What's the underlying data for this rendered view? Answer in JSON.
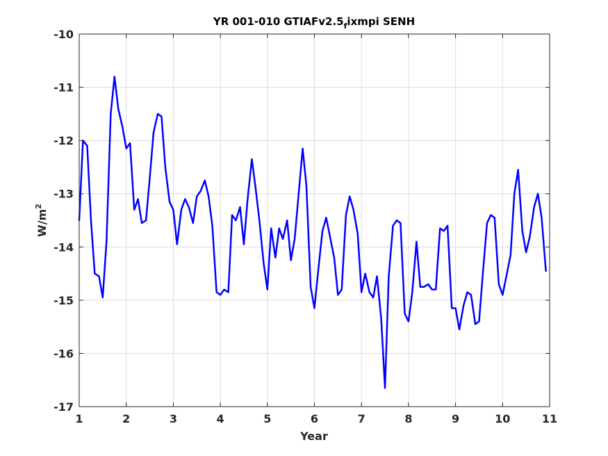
{
  "chart_data": {
    "type": "line",
    "title_main": "YR 001-010 GTIAFv2.5",
    "title_sub": "f",
    "title_end": "ixmpi SENH",
    "xlabel": "Year",
    "ylabel_base": "W/m",
    "ylabel_sup": "2",
    "xlim": [
      1,
      11
    ],
    "ylim": [
      -17,
      -10
    ],
    "xticks": [
      "1",
      "2",
      "3",
      "4",
      "5",
      "6",
      "7",
      "8",
      "9",
      "10",
      "11"
    ],
    "yticks": [
      "-10",
      "-11",
      "-12",
      "-13",
      "-14",
      "-15",
      "-16",
      "-17"
    ],
    "grid": true,
    "line_color": "#0000ff",
    "series": [
      {
        "x": [
          1.0,
          1.08,
          1.17,
          1.25,
          1.33,
          1.42,
          1.5,
          1.58,
          1.67,
          1.75,
          1.83,
          1.92,
          2.0,
          2.08,
          2.17,
          2.25,
          2.33,
          2.42,
          2.5,
          2.58,
          2.67,
          2.75,
          2.83,
          2.92,
          3.0,
          3.08,
          3.17,
          3.25,
          3.33,
          3.42,
          3.5,
          3.58,
          3.67,
          3.75,
          3.83,
          3.92,
          4.0,
          4.08,
          4.17,
          4.25,
          4.33,
          4.42,
          4.5,
          4.58,
          4.67,
          4.75,
          4.83,
          4.92,
          5.0,
          5.08,
          5.17,
          5.25,
          5.33,
          5.42,
          5.5,
          5.58,
          5.67,
          5.75,
          5.83,
          5.92,
          6.0,
          6.08,
          6.17,
          6.25,
          6.33,
          6.42,
          6.5,
          6.58,
          6.67,
          6.75,
          6.83,
          6.92,
          7.0,
          7.08,
          7.17,
          7.25,
          7.33,
          7.42,
          7.5,
          7.58,
          7.67,
          7.75,
          7.83,
          7.92,
          8.0,
          8.08,
          8.17,
          8.25,
          8.33,
          8.42,
          8.5,
          8.58,
          8.67,
          8.75,
          8.83,
          8.92,
          9.0,
          9.08,
          9.17,
          9.25,
          9.33,
          9.42,
          9.5,
          9.58,
          9.67,
          9.75,
          9.83,
          9.92,
          10.0,
          10.08,
          10.17,
          10.25,
          10.33,
          10.42,
          10.5,
          10.58,
          10.67,
          10.75,
          10.83,
          10.92
        ],
        "y": [
          -13.5,
          -12.0,
          -12.1,
          -13.5,
          -14.5,
          -14.55,
          -14.95,
          -13.9,
          -11.5,
          -10.8,
          -11.4,
          -11.75,
          -12.15,
          -12.05,
          -13.3,
          -13.1,
          -13.55,
          -13.5,
          -12.7,
          -11.85,
          -11.5,
          -11.55,
          -12.5,
          -13.15,
          -13.3,
          -13.95,
          -13.3,
          -13.1,
          -13.25,
          -13.55,
          -13.05,
          -12.95,
          -12.75,
          -13.05,
          -13.6,
          -14.85,
          -14.9,
          -14.8,
          -14.85,
          -13.4,
          -13.5,
          -13.25,
          -13.95,
          -13.1,
          -12.35,
          -12.9,
          -13.5,
          -14.3,
          -14.8,
          -13.65,
          -14.2,
          -13.65,
          -13.85,
          -13.5,
          -14.25,
          -13.85,
          -12.95,
          -12.15,
          -12.85,
          -14.75,
          -15.15,
          -14.45,
          -13.7,
          -13.45,
          -13.8,
          -14.2,
          -14.9,
          -14.8,
          -13.4,
          -13.05,
          -13.3,
          -13.75,
          -14.85,
          -14.5,
          -14.85,
          -14.95,
          -14.55,
          -15.35,
          -16.65,
          -14.55,
          -13.6,
          -13.5,
          -13.55,
          -15.25,
          -15.4,
          -14.85,
          -13.9,
          -14.75,
          -14.75,
          -14.7,
          -14.8,
          -14.8,
          -13.65,
          -13.7,
          -13.6,
          -15.15,
          -15.15,
          -15.55,
          -15.1,
          -14.85,
          -14.9,
          -15.45,
          -15.4,
          -14.5,
          -13.55,
          -13.4,
          -13.45,
          -14.7,
          -14.9,
          -14.55,
          -14.15,
          -13.0,
          -12.55,
          -13.7,
          -14.1,
          -13.8,
          -13.25,
          -13.0,
          -13.45,
          -14.45
        ]
      }
    ]
  }
}
